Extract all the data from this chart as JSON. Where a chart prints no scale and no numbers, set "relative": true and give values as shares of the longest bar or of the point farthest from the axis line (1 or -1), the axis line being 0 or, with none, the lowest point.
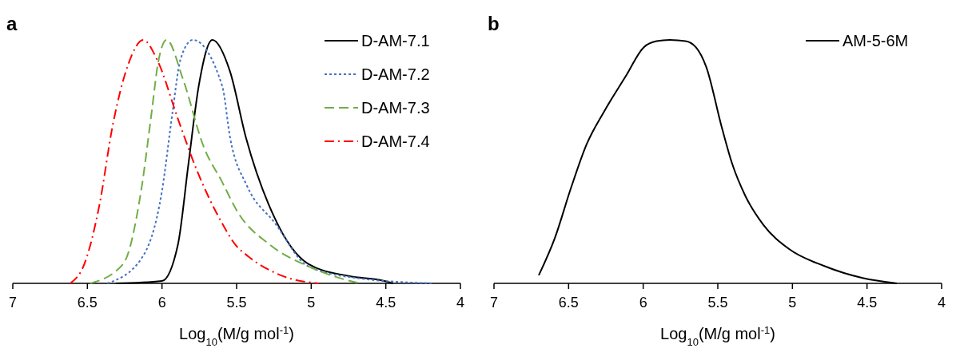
{
  "chart_data": [
    {
      "type": "line",
      "title": "a",
      "xlabel": "Log$_{10}$(M/g mol$^{-1}$)",
      "relative": true,
      "xlim": [
        7,
        4
      ],
      "xticks": [
        7,
        6.5,
        6,
        5.5,
        5,
        4.5,
        4
      ],
      "legend": "top right",
      "grid": false,
      "series": [
        {
          "name": "D-AM-7.1",
          "color": "#000000",
          "line_style": "solid",
          "x": [
            6.31,
            6.0,
            5.893,
            5.823,
            5.754,
            5.662,
            5.544,
            5.438,
            5.246,
            5.02,
            4.75,
            4.51,
            4.45
          ],
          "values": [
            0,
            0.01,
            0.16,
            0.49,
            0.81,
            1.0,
            0.87,
            0.6,
            0.27,
            0.08,
            0.03,
            0.01,
            0
          ]
        },
        {
          "name": "D-AM-7.2",
          "color": "#4472c4",
          "line_style": "dotted",
          "x": [
            6.366,
            6.14,
            6.0,
            5.93,
            5.876,
            5.794,
            5.596,
            5.544,
            5.43,
            5.246,
            5.02,
            4.67,
            4.18
          ],
          "values": [
            0,
            0.1,
            0.38,
            0.7,
            0.92,
            1.0,
            0.81,
            0.6,
            0.4,
            0.25,
            0.07,
            0.02,
            0
          ]
        },
        {
          "name": "D-AM-7.3",
          "color": "#70ad47",
          "line_style": "dashed",
          "x": [
            6.48,
            6.26,
            6.14,
            6.07,
            6.025,
            5.969,
            5.86,
            5.72,
            5.6,
            5.49,
            5.28,
            5.02,
            4.8,
            4.67
          ],
          "values": [
            0,
            0.08,
            0.38,
            0.7,
            0.91,
            1.0,
            0.84,
            0.56,
            0.42,
            0.29,
            0.16,
            0.07,
            0.02,
            0
          ]
        },
        {
          "name": "D-AM-7.4",
          "color": "#ff0000",
          "line_style": "dashdot",
          "x": [
            6.615,
            6.52,
            6.42,
            6.33,
            6.226,
            6.125,
            6.034,
            5.89,
            5.77,
            5.6,
            5.51,
            5.42,
            5.19,
            4.95
          ],
          "values": [
            0,
            0.08,
            0.32,
            0.65,
            0.9,
            1.0,
            0.92,
            0.67,
            0.47,
            0.25,
            0.16,
            0.11,
            0.03,
            0
          ]
        }
      ]
    },
    {
      "type": "line",
      "title": "b",
      "xlabel": "Log$_{10}$(M/g mol$^{-1}$)",
      "relative": true,
      "xlim": [
        7,
        4
      ],
      "xticks": [
        7,
        6.5,
        6,
        5.5,
        5,
        4.5,
        4
      ],
      "legend": "top right",
      "grid": false,
      "series": [
        {
          "name": "AM-5-6M",
          "color": "#000000",
          "line_style": "solid",
          "x": [
            6.7,
            6.59,
            6.485,
            6.38,
            6.258,
            6.118,
            5.996,
            5.91,
            5.822,
            5.717,
            5.647,
            5.578,
            5.473,
            5.403,
            5.316,
            5.194,
            5.02,
            4.79,
            4.53,
            4.3
          ],
          "values": [
            0.033,
            0.19,
            0.39,
            0.57,
            0.71,
            0.85,
            0.97,
            0.995,
            1.0,
            0.995,
            0.97,
            0.89,
            0.64,
            0.49,
            0.36,
            0.24,
            0.14,
            0.072,
            0.022,
            0
          ]
        }
      ]
    }
  ]
}
